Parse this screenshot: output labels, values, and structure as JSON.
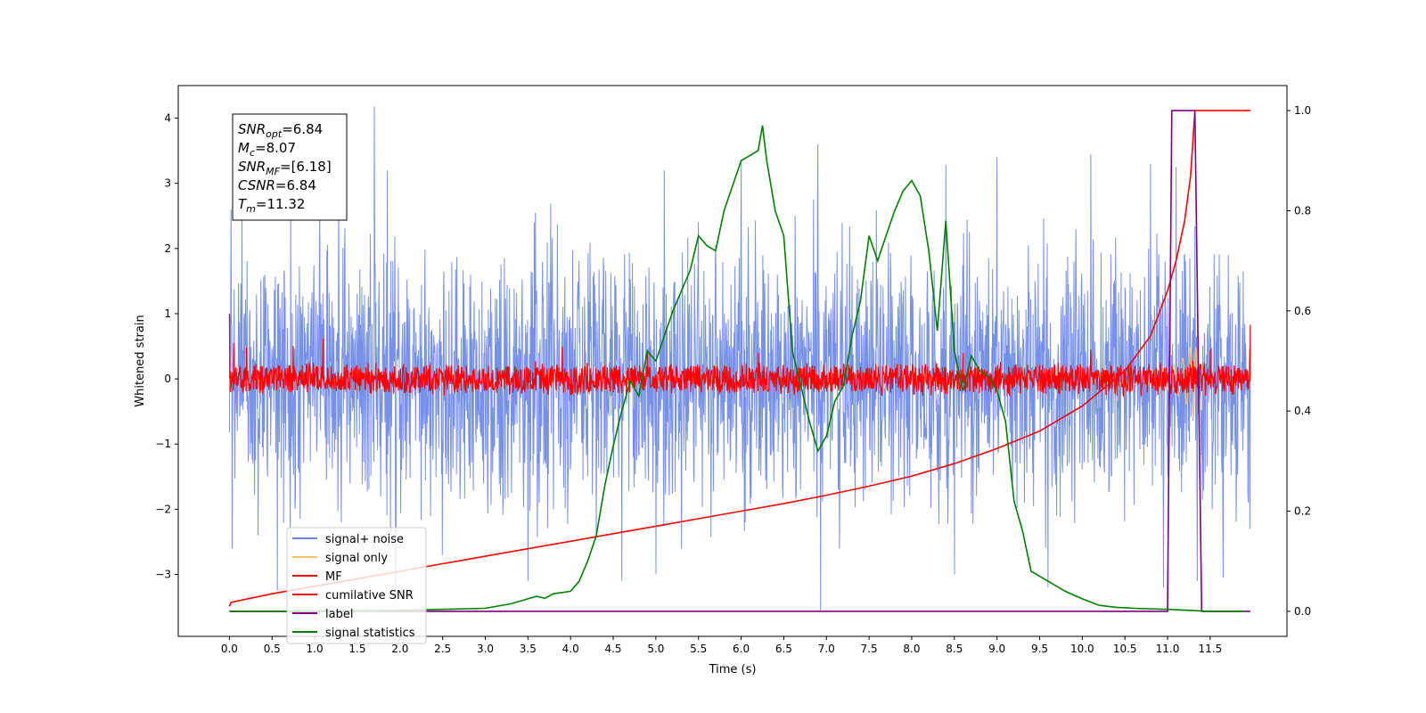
{
  "chart_data": {
    "type": "line",
    "xlabel": "Time (s)",
    "ylabel": "Whitened strain",
    "xlim": [
      -0.6,
      12.4
    ],
    "ylim_left": [
      -3.95,
      4.5
    ],
    "ylim_right": [
      -0.05,
      1.05
    ],
    "x_ticks": [
      0.0,
      0.5,
      1.0,
      1.5,
      2.0,
      2.5,
      3.0,
      3.5,
      4.0,
      4.5,
      5.0,
      5.5,
      6.0,
      6.5,
      7.0,
      7.5,
      8.0,
      8.5,
      9.0,
      9.5,
      10.0,
      10.5,
      11.0,
      11.5
    ],
    "x_tick_labels": [
      "0.0",
      "0.5",
      "1.0",
      "1.5",
      "2.0",
      "2.5",
      "3.0",
      "3.5",
      "4.0",
      "4.5",
      "5.0",
      "5.5",
      "6.0",
      "6.5",
      "7.0",
      "7.5",
      "8.0",
      "8.5",
      "9.0",
      "9.5",
      "10.0",
      "10.5",
      "11.0",
      "11.5"
    ],
    "y_ticks_left": [
      -3,
      -2,
      -1,
      0,
      1,
      2,
      3,
      4
    ],
    "y_tick_labels_left": [
      "−3",
      "−2",
      "−1",
      "0",
      "1",
      "2",
      "3",
      "4"
    ],
    "y_ticks_right": [
      0.0,
      0.2,
      0.4,
      0.6,
      0.8,
      1.0
    ],
    "y_tick_labels_right": [
      "0.0",
      "0.2",
      "0.4",
      "0.6",
      "0.8",
      "1.0"
    ],
    "grid": false,
    "legend_position": "lower-left",
    "legend": [
      {
        "name": "signal+ noise",
        "color": "#6b88e6"
      },
      {
        "name": "signal only",
        "color": "#f5c26b"
      },
      {
        "name": "MF",
        "color": "#ff0000"
      },
      {
        "name": "cumilative SNR",
        "color": "#ff0000"
      },
      {
        "name": "label",
        "color": "#800080"
      },
      {
        "name": "signal statistics",
        "color": "#008000"
      }
    ],
    "series": [
      {
        "name": "signal+ noise",
        "axis": "left",
        "color": "#6b88e6",
        "description": "noise band roughly between -2.5 and 2.5 with spikes",
        "spikes": [
          [
            0.02,
            2.6
          ],
          [
            0.03,
            -2.6
          ],
          [
            0.72,
            2.65
          ],
          [
            0.56,
            -3.25
          ],
          [
            1.7,
            4.18
          ],
          [
            1.28,
            3.0
          ],
          [
            1.85,
            3.2
          ],
          [
            1.95,
            -3.4
          ],
          [
            3.5,
            -3.1
          ],
          [
            4.6,
            -3.1
          ],
          [
            5.0,
            -3.0
          ],
          [
            5.1,
            3.2
          ],
          [
            6.0,
            3.35
          ],
          [
            6.9,
            3.6
          ],
          [
            6.93,
            -3.55
          ],
          [
            8.4,
            3.28
          ],
          [
            8.5,
            -3.0
          ],
          [
            9.0,
            3.4
          ],
          [
            9.6,
            -3.2
          ],
          [
            10.1,
            3.45
          ],
          [
            10.8,
            3.3
          ],
          [
            10.95,
            -3.2
          ],
          [
            11.1,
            3.25
          ],
          [
            11.35,
            -3.1
          ],
          [
            11.65,
            -3.05
          ]
        ]
      },
      {
        "name": "signal only",
        "axis": "left",
        "color": "#f5c26b",
        "x": [
          10.0,
          10.4,
          10.7,
          10.9,
          11.05,
          11.15,
          11.22,
          11.28,
          11.32,
          11.36
        ],
        "amplitude": [
          0.04,
          0.07,
          0.1,
          0.14,
          0.2,
          0.28,
          0.38,
          0.52,
          0.65,
          0.1
        ]
      },
      {
        "name": "MF",
        "axis": "left",
        "color": "#ff0000",
        "description": "filter output band between about -0.25 and 0.25 with peaks",
        "spikes": [
          [
            0.0,
            1.0
          ],
          [
            0.05,
            0.55
          ],
          [
            0.2,
            0.48
          ],
          [
            1.1,
            0.62
          ],
          [
            0.75,
            0.5
          ],
          [
            3.9,
            0.5
          ],
          [
            4.9,
            0.42
          ],
          [
            6.2,
            0.4
          ],
          [
            8.6,
            0.4
          ],
          [
            10.1,
            0.45
          ],
          [
            11.5,
            0.45
          ],
          [
            11.97,
            0.83
          ]
        ]
      },
      {
        "name": "cumilative SNR",
        "axis": "right",
        "color": "#ff0000",
        "x": [
          0.0,
          0.02,
          0.5,
          1.0,
          1.5,
          2.0,
          2.5,
          3.0,
          3.5,
          4.0,
          4.5,
          5.0,
          5.5,
          6.0,
          6.5,
          7.0,
          7.5,
          8.0,
          8.5,
          9.0,
          9.5,
          10.0,
          10.5,
          10.8,
          11.0,
          11.1,
          11.2,
          11.27,
          11.32,
          11.4,
          11.97
        ],
        "y": [
          0.01,
          0.018,
          0.035,
          0.05,
          0.065,
          0.08,
          0.095,
          0.11,
          0.125,
          0.14,
          0.155,
          0.17,
          0.185,
          0.2,
          0.215,
          0.232,
          0.25,
          0.27,
          0.295,
          0.325,
          0.36,
          0.41,
          0.48,
          0.55,
          0.64,
          0.7,
          0.78,
          0.87,
          1.0,
          1.0,
          1.0
        ]
      },
      {
        "name": "label",
        "axis": "right",
        "color": "#800080",
        "x": [
          0.0,
          11.0,
          11.05,
          11.32,
          11.4,
          11.97
        ],
        "y": [
          0.0,
          0.0,
          1.0,
          1.0,
          0.0,
          0.0
        ]
      },
      {
        "name": "signal statistics",
        "axis": "right",
        "color": "#008000",
        "x": [
          0.0,
          1.0,
          2.0,
          2.5,
          3.0,
          3.3,
          3.5,
          3.6,
          3.7,
          3.8,
          4.0,
          4.1,
          4.2,
          4.3,
          4.4,
          4.5,
          4.6,
          4.7,
          4.8,
          4.9,
          5.0,
          5.1,
          5.2,
          5.3,
          5.4,
          5.5,
          5.6,
          5.7,
          5.8,
          5.9,
          6.0,
          6.1,
          6.2,
          6.25,
          6.3,
          6.4,
          6.5,
          6.6,
          6.7,
          6.8,
          6.9,
          7.0,
          7.1,
          7.2,
          7.3,
          7.4,
          7.5,
          7.6,
          7.7,
          7.8,
          7.9,
          8.0,
          8.1,
          8.2,
          8.3,
          8.4,
          8.5,
          8.6,
          8.7,
          8.8,
          8.9,
          9.0,
          9.1,
          9.2,
          9.3,
          9.4,
          9.6,
          9.8,
          10.0,
          10.2,
          10.4,
          10.6,
          11.0,
          11.5,
          11.9
        ],
        "y": [
          0.0,
          0.0,
          0.002,
          0.004,
          0.006,
          0.015,
          0.025,
          0.03,
          0.026,
          0.035,
          0.04,
          0.06,
          0.1,
          0.15,
          0.25,
          0.33,
          0.4,
          0.46,
          0.43,
          0.52,
          0.5,
          0.55,
          0.6,
          0.64,
          0.68,
          0.75,
          0.73,
          0.72,
          0.8,
          0.85,
          0.9,
          0.91,
          0.92,
          0.97,
          0.9,
          0.8,
          0.75,
          0.52,
          0.45,
          0.38,
          0.32,
          0.35,
          0.42,
          0.45,
          0.55,
          0.62,
          0.75,
          0.7,
          0.75,
          0.8,
          0.84,
          0.86,
          0.83,
          0.72,
          0.56,
          0.78,
          0.52,
          0.44,
          0.51,
          0.48,
          0.47,
          0.44,
          0.38,
          0.22,
          0.16,
          0.08,
          0.06,
          0.04,
          0.025,
          0.012,
          0.008,
          0.006,
          0.004,
          0.0,
          0.0
        ]
      }
    ],
    "annotation": {
      "lines": [
        {
          "main": "SNR",
          "sub": "opt",
          "value": "=6.84"
        },
        {
          "main": "M",
          "sub": "c",
          "value": "=8.07"
        },
        {
          "main": "SNR",
          "sub": "MF",
          "value": "=[6.18]"
        },
        {
          "main": "CSNR",
          "sub": "",
          "value": "=6.84"
        },
        {
          "main": "T",
          "sub": "m",
          "value": "=11.32"
        }
      ]
    }
  }
}
